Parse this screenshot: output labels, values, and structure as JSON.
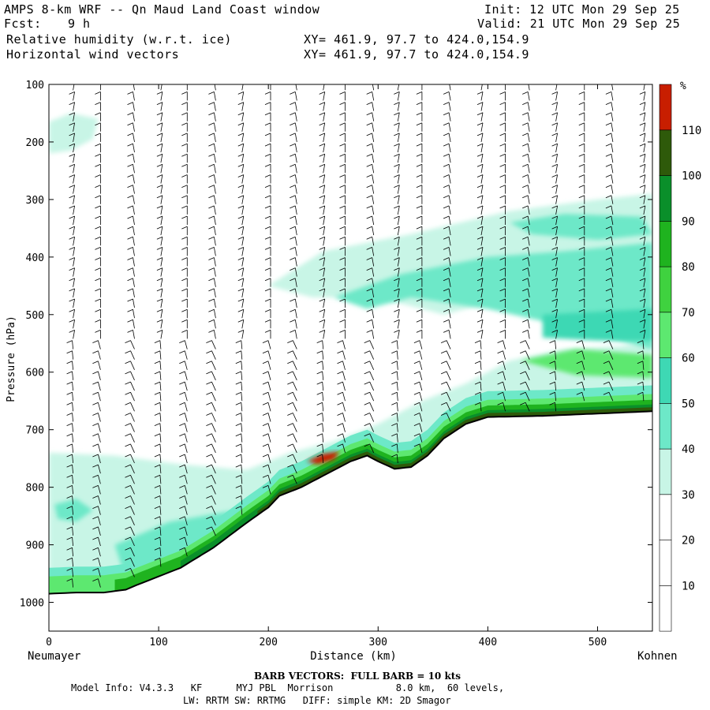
{
  "header": {
    "title": "AMPS 8-km WRF -- Qn Maud Land Coast window",
    "fcst_label": "Fcst:",
    "fcst_value": "9 h",
    "init": "Init: 12 UTC Mon 29 Sep 25",
    "valid": "Valid: 21 UTC Mon 29 Sep 25",
    "field1": "Relative humidity (w.r.t. ice)",
    "field2": "Horizontal wind vectors",
    "xy1": "XY= 461.9, 97.7 to 424.0,154.9",
    "xy2": "XY= 461.9, 97.7 to 424.0,154.9"
  },
  "footer": {
    "barb_note": "BARB VECTORS:  FULL BARB = 10 kts",
    "model_info": "Model Info: V4.3.3   KF      MYJ PBL  Morrison           8.0 km,  60 levels,",
    "model_info2": "LW: RRTM SW: RRTMG   DIFF: simple KM: 2D Smagor"
  },
  "colors": {
    "c0": "#ffffff",
    "c30": "#c8f5e6",
    "c40": "#6de8c8",
    "c50": "#3ed8b4",
    "c60": "#5de870",
    "c70": "#3fd23f",
    "c80": "#1fb31f",
    "c90": "#0a8f2a",
    "c100": "#2e5a0a",
    "c110": "#c81e00",
    "terrain": "#000000"
  },
  "chart_data": {
    "type": "cross-section",
    "title": "Relative humidity (w.r.t. ice) and horizontal wind vectors",
    "xlabel": "Distance (km)",
    "ylabel": "Pressure (hPa)",
    "xlim": [
      0,
      550
    ],
    "ylim": [
      1050,
      100
    ],
    "x_ticks": [
      0,
      100,
      200,
      300,
      400,
      500
    ],
    "y_ticks": [
      100,
      200,
      300,
      400,
      500,
      600,
      700,
      800,
      900,
      1000
    ],
    "left_endpoint": "Neumayer",
    "right_endpoint": "Kohnen",
    "colorbar": {
      "unit": "%",
      "levels": [
        10,
        20,
        30,
        40,
        50,
        60,
        70,
        80,
        90,
        100,
        110
      ],
      "colors": [
        "#ffffff",
        "#ffffff",
        "#ffffff",
        "#c8f5e6",
        "#6de8c8",
        "#3ed8b4",
        "#5de870",
        "#3fd23f",
        "#1fb31f",
        "#0a8f2a",
        "#2e5a0a",
        "#c81e00"
      ]
    },
    "terrain_surface_pressure": {
      "x": [
        0,
        25,
        50,
        70,
        80,
        100,
        120,
        150,
        180,
        200,
        210,
        230,
        250,
        275,
        290,
        300,
        315,
        330,
        345,
        360,
        380,
        400,
        450,
        500,
        550
      ],
      "p": [
        985,
        983,
        983,
        978,
        970,
        955,
        940,
        905,
        862,
        835,
        815,
        800,
        780,
        755,
        745,
        755,
        768,
        765,
        745,
        715,
        690,
        678,
        676,
        672,
        668
      ]
    },
    "barb_x_km": [
      22,
      47,
      78,
      102,
      126,
      152,
      176,
      202,
      226,
      250,
      270,
      296,
      318,
      340,
      366,
      394,
      416,
      438,
      462,
      488,
      514,
      542
    ],
    "barb_note": "BARB VECTORS:  FULL BARB = 10 kts"
  }
}
